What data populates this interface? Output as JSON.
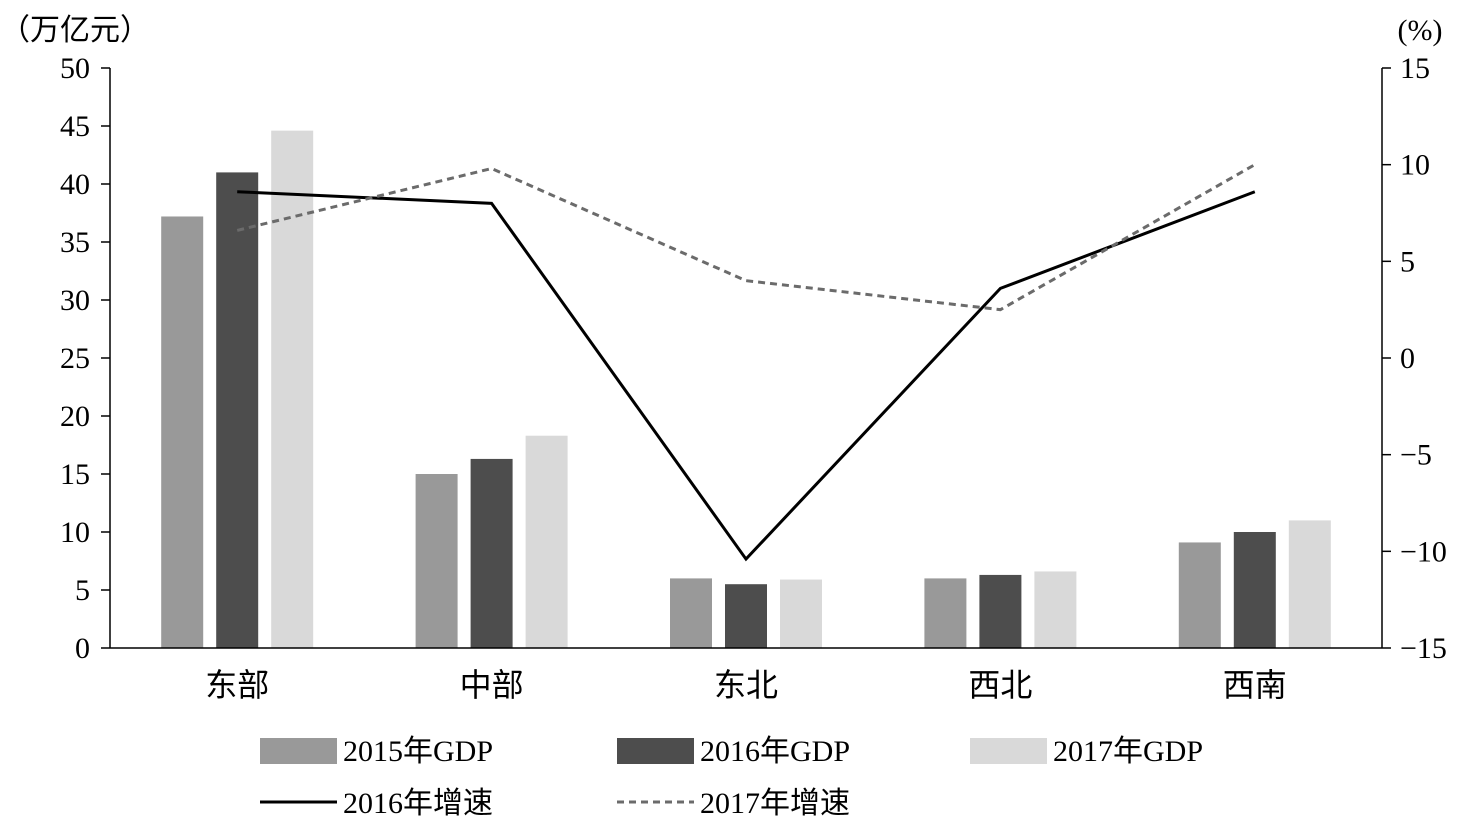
{
  "chart_data": {
    "type": "bar",
    "categories": [
      "东部",
      "中部",
      "东北",
      "西北",
      "西南"
    ],
    "bar_series": [
      {
        "name": "2015年GDP",
        "values": [
          37.2,
          15.0,
          6.0,
          6.0,
          9.1
        ],
        "color": "#999999"
      },
      {
        "name": "2016年GDP",
        "values": [
          41.0,
          16.3,
          5.5,
          6.3,
          10.0
        ],
        "color": "#4d4d4d"
      },
      {
        "name": "2017年GDP",
        "values": [
          44.6,
          18.3,
          5.9,
          6.6,
          11.0
        ],
        "color": "#d9d9d9"
      }
    ],
    "line_series": [
      {
        "name": "2016年增速",
        "values": [
          8.6,
          8.0,
          -10.4,
          3.6,
          8.6
        ],
        "color": "#000000",
        "style": "solid"
      },
      {
        "name": "2017年增速",
        "values": [
          6.6,
          9.8,
          4.0,
          2.5,
          10.0
        ],
        "color": "#6b6b6b",
        "style": "dashed"
      }
    ],
    "left_axis": {
      "unit_label": "（万亿元）",
      "min": 0,
      "max": 50,
      "step": 5,
      "ticks": [
        "0",
        "5",
        "10",
        "15",
        "20",
        "25",
        "30",
        "35",
        "40",
        "45",
        "50"
      ]
    },
    "right_axis": {
      "unit_label": "(%)",
      "min": -15,
      "max": 15,
      "step": 5,
      "ticks": [
        "−15",
        "−10",
        "−5",
        "0",
        "5",
        "10",
        "15"
      ]
    },
    "legend_position": "bottom",
    "grid": false
  }
}
